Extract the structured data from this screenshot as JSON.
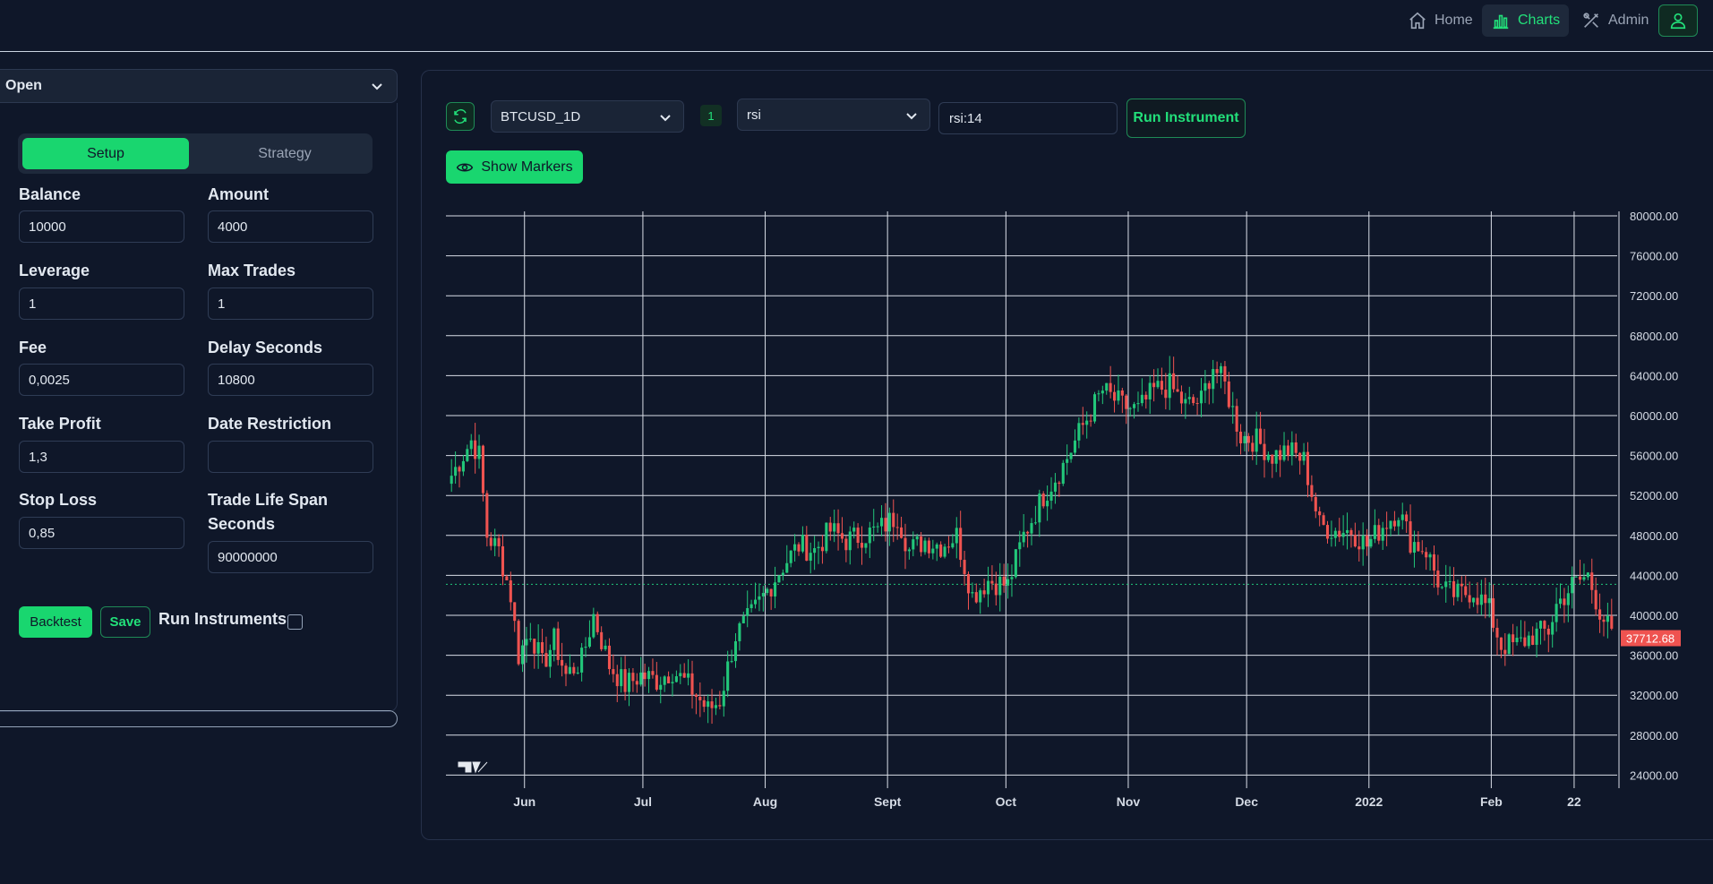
{
  "nav": {
    "home_label": "Home",
    "charts_label": "Charts",
    "admin_label": "Admin"
  },
  "left": {
    "section_select": "Open",
    "tabs": [
      {
        "label": "Setup",
        "active": true
      },
      {
        "label": "Strategy",
        "active": false
      }
    ],
    "fields": {
      "balance": {
        "label": "Balance",
        "value": "10000"
      },
      "amount": {
        "label": "Amount",
        "value": "4000"
      },
      "leverage": {
        "label": "Leverage",
        "value": "1"
      },
      "max_trades": {
        "label": "Max Trades",
        "value": "1"
      },
      "fee": {
        "label": "Fee",
        "value": "0,0025"
      },
      "delay_seconds": {
        "label": "Delay Seconds",
        "value": "10800"
      },
      "take_profit": {
        "label": "Take Profit",
        "value": "1,3"
      },
      "date_restriction": {
        "label": "Date Restriction",
        "value": ""
      },
      "stop_loss": {
        "label": "Stop Loss",
        "value": "0,85"
      },
      "trade_life_span": {
        "label_line1": "Trade Life Span",
        "label_line2": "Seconds",
        "value": "90000000"
      }
    },
    "backtest_label": "Backtest",
    "save_label": "Save",
    "run_instruments_label": "Run Instruments",
    "run_instruments_checked": false
  },
  "toolbar": {
    "symbol": "BTCUSD_1D",
    "indicator_count": "1",
    "indicator": "rsi",
    "indicator_params": "rsi:14",
    "run_instrument_label": "Run Instrument",
    "show_markers_label": "Show Markers"
  },
  "colors": {
    "accent": "#19d66f",
    "up": "#22c77a",
    "down": "#ef5350",
    "background": "#0f1729"
  },
  "chart_data": {
    "type": "candlestick",
    "y_ticks": [
      "80000.00",
      "76000.00",
      "72000.00",
      "68000.00",
      "64000.00",
      "60000.00",
      "56000.00",
      "52000.00",
      "48000.00",
      "44000.00",
      "40000.00",
      "36000.00",
      "32000.00",
      "28000.00",
      "24000.00"
    ],
    "ylim": [
      23000,
      80500
    ],
    "x_labels": [
      {
        "label": "Jun",
        "day": 19,
        "bold": false
      },
      {
        "label": "Jul",
        "day": 49,
        "bold": false
      },
      {
        "label": "Aug",
        "day": 80,
        "bold": false
      },
      {
        "label": "Sept",
        "day": 111,
        "bold": false
      },
      {
        "label": "Oct",
        "day": 141,
        "bold": false
      },
      {
        "label": "Nov",
        "day": 172,
        "bold": false
      },
      {
        "label": "Dec",
        "day": 202,
        "bold": false
      },
      {
        "label": "2022",
        "day": 233,
        "bold": true
      },
      {
        "label": "Feb",
        "day": 264,
        "bold": false
      },
      {
        "label": "22",
        "day": 285,
        "bold": false
      }
    ],
    "last_price": "37712.68",
    "last_value": 37712.68,
    "price_line": 43100,
    "grid": true,
    "days": 295,
    "anchors": [
      [
        0,
        54000
      ],
      [
        5,
        57500
      ],
      [
        7,
        56000
      ],
      [
        9,
        48000
      ],
      [
        12,
        46500
      ],
      [
        15,
        42000
      ],
      [
        17,
        36000
      ],
      [
        20,
        38500
      ],
      [
        23,
        35000
      ],
      [
        26,
        37500
      ],
      [
        29,
        34000
      ],
      [
        33,
        35500
      ],
      [
        36,
        40000
      ],
      [
        40,
        35000
      ],
      [
        44,
        33000
      ],
      [
        48,
        34000
      ],
      [
        52,
        33500
      ],
      [
        56,
        34500
      ],
      [
        60,
        33000
      ],
      [
        65,
        30500
      ],
      [
        68,
        31500
      ],
      [
        72,
        38000
      ],
      [
        76,
        40000
      ],
      [
        80,
        42500
      ],
      [
        84,
        45000
      ],
      [
        88,
        47000
      ],
      [
        92,
        46500
      ],
      [
        96,
        48500
      ],
      [
        100,
        47500
      ],
      [
        104,
        48000
      ],
      [
        108,
        48500
      ],
      [
        113,
        50000
      ],
      [
        116,
        46500
      ],
      [
        120,
        47500
      ],
      [
        124,
        47000
      ],
      [
        128,
        48000
      ],
      [
        132,
        42000
      ],
      [
        136,
        43500
      ],
      [
        141,
        43000
      ],
      [
        145,
        48000
      ],
      [
        150,
        52000
      ],
      [
        155,
        55000
      ],
      [
        160,
        59000
      ],
      [
        165,
        62500
      ],
      [
        170,
        61000
      ],
      [
        174,
        60500
      ],
      [
        178,
        62500
      ],
      [
        182,
        63000
      ],
      [
        186,
        61000
      ],
      [
        190,
        61500
      ],
      [
        193,
        65000
      ],
      [
        196,
        63000
      ],
      [
        200,
        58000
      ],
      [
        204,
        57500
      ],
      [
        208,
        56000
      ],
      [
        212,
        56500
      ],
      [
        216,
        55500
      ],
      [
        220,
        49000
      ],
      [
        224,
        48500
      ],
      [
        228,
        48500
      ],
      [
        232,
        47000
      ],
      [
        236,
        49000
      ],
      [
        240,
        50500
      ],
      [
        243,
        47500
      ],
      [
        247,
        46500
      ],
      [
        251,
        42500
      ],
      [
        255,
        42000
      ],
      [
        259,
        42500
      ],
      [
        263,
        40500
      ],
      [
        266,
        37000
      ],
      [
        270,
        37000
      ],
      [
        274,
        38000
      ],
      [
        278,
        38500
      ],
      [
        280,
        41000
      ],
      [
        284,
        43000
      ],
      [
        288,
        44000
      ],
      [
        291,
        40500
      ],
      [
        294,
        38000
      ],
      [
        296,
        37712
      ]
    ]
  }
}
